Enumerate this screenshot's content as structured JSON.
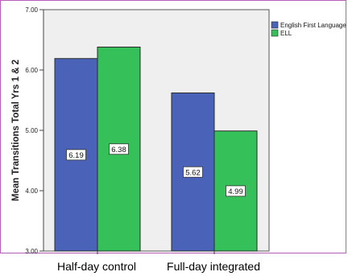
{
  "chart_data": {
    "type": "bar",
    "categories": [
      "Half-day control",
      "Full-day integrated"
    ],
    "series": [
      {
        "name": "English First Language",
        "values": [
          6.19,
          5.62
        ],
        "labels": [
          "6.19",
          "5.62"
        ],
        "color": "#4a63b8"
      },
      {
        "name": "ELL",
        "values": [
          6.38,
          4.99
        ],
        "labels": [
          "6.38",
          "4.99"
        ],
        "color": "#36c05a"
      }
    ],
    "ylabel": "Mean Transitions Total Yrs 1 & 2",
    "xlabel": "",
    "ylim": [
      3.0,
      7.0
    ],
    "yticks": [
      "3.00",
      "4.00",
      "5.00",
      "6.00",
      "7.00"
    ],
    "plot_background": "#efefef",
    "legend_position": "top-right",
    "grid": false
  }
}
